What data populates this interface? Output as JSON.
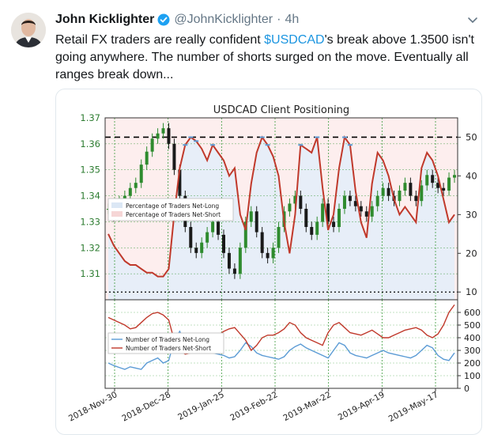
{
  "tweet": {
    "author_name": "John Kicklighter",
    "handle": "@JohnKicklighter",
    "separator": "·",
    "time": "4h",
    "text_before": "Retail FX traders are really confident ",
    "cashtag": "$USDCAD",
    "text_after": "'s break above 1.3500 isn't going anywhere. The number of shorts surged on the move. Eventually all ranges break down...",
    "icons": {
      "verified": "verified-badge-icon",
      "more": "chevron-down-icon"
    },
    "colors": {
      "cashtag": "#1b95e0",
      "verified": "#1da1f2"
    }
  },
  "chart_data": [
    {
      "type": "line",
      "title": "USDCAD Client Positioning",
      "left_axis": {
        "ylim": [
          1.3,
          1.37
        ],
        "ticks": [
          "1.37",
          "1.36",
          "1.35",
          "1.34",
          "1.33",
          "1.32",
          "1.31"
        ],
        "color": "#2e7d32"
      },
      "right_axis": {
        "ylim": [
          8,
          55
        ],
        "ticks": [
          "50",
          "40",
          "30",
          "20",
          "10"
        ]
      },
      "x_ticks": [
        "2018-Nov-30",
        "2018-Dec-28",
        "2019-Jan-25",
        "2019-Feb-22",
        "2019-Mar-22",
        "2019-Apr-19",
        "2019-May-17"
      ],
      "legend": [
        "Percentage of Traders Net-Long",
        "Percentage of Traders Net-Short"
      ],
      "legend_colors": [
        "#dbe7f5",
        "#f6d6d6"
      ],
      "reference_lines": [
        50,
        10
      ],
      "price": [
        1.335,
        1.332,
        1.338,
        1.34,
        1.343,
        1.345,
        1.352,
        1.357,
        1.362,
        1.364,
        1.366,
        1.36,
        1.35,
        1.34,
        1.328,
        1.32,
        1.318,
        1.322,
        1.326,
        1.33,
        1.325,
        1.318,
        1.312,
        1.31,
        1.32,
        1.33,
        1.334,
        1.326,
        1.318,
        1.316,
        1.32,
        1.328,
        1.334,
        1.337,
        1.34,
        1.335,
        1.328,
        1.325,
        1.33,
        1.337,
        1.33,
        1.328,
        1.335,
        1.34,
        1.338,
        1.336,
        1.334,
        1.332,
        1.336,
        1.34,
        1.343,
        1.34,
        1.338,
        1.342,
        1.345,
        1.34,
        1.338,
        1.344,
        1.348,
        1.345,
        1.343,
        1.342,
        1.347,
        1.348
      ],
      "short_pct": [
        25,
        22,
        20,
        18,
        17,
        17,
        16,
        15,
        15,
        14,
        14,
        16,
        30,
        42,
        48,
        50,
        49,
        47,
        44,
        48,
        46,
        44,
        40,
        42,
        30,
        26,
        38,
        46,
        50,
        48,
        45,
        40,
        28,
        20,
        30,
        48,
        47,
        46,
        50,
        37,
        26,
        30,
        42,
        50,
        48,
        36,
        28,
        24,
        38,
        46,
        44,
        40,
        34,
        30,
        32,
        30,
        28,
        42,
        46,
        44,
        40,
        34,
        28,
        30
      ]
    },
    {
      "type": "line",
      "ylim": [
        0,
        700
      ],
      "ticks": [
        "600",
        "500",
        "400",
        "300",
        "200",
        "100",
        "0"
      ],
      "legend": [
        "Number of Traders Net-Long",
        "Number of Traders Net-Short"
      ],
      "series": [
        {
          "name": "Number of Traders Net-Long",
          "color": "#5b9bd5",
          "values": [
            200,
            180,
            165,
            150,
            170,
            160,
            150,
            200,
            220,
            240,
            200,
            220,
            380,
            450,
            360,
            300,
            320,
            300,
            310,
            280,
            270,
            260,
            240,
            250,
            300,
            360,
            330,
            280,
            260,
            250,
            240,
            230,
            250,
            300,
            330,
            350,
            320,
            300,
            280,
            260,
            240,
            300,
            360,
            340,
            280,
            260,
            250,
            240,
            260,
            280,
            300,
            280,
            270,
            260,
            250,
            240,
            260,
            300,
            340,
            320,
            260,
            230,
            220,
            280
          ]
        },
        {
          "name": "Number of Traders Net-Short",
          "color": "#c0392b",
          "values": [
            560,
            540,
            520,
            500,
            470,
            480,
            520,
            560,
            590,
            600,
            580,
            540,
            380,
            300,
            270,
            280,
            330,
            360,
            400,
            380,
            420,
            450,
            470,
            480,
            430,
            380,
            300,
            340,
            400,
            420,
            420,
            440,
            470,
            520,
            500,
            440,
            400,
            380,
            360,
            340,
            440,
            500,
            520,
            480,
            440,
            430,
            420,
            440,
            460,
            430,
            400,
            400,
            420,
            440,
            460,
            470,
            480,
            460,
            420,
            400,
            430,
            500,
            600,
            660
          ]
        }
      ]
    }
  ]
}
